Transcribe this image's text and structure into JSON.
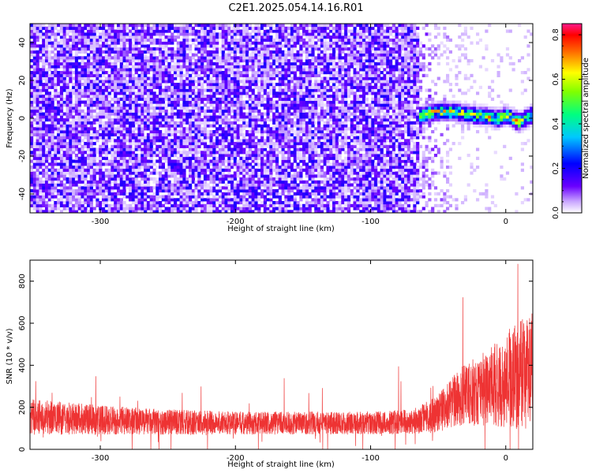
{
  "title": "C2E1.2025.054.14.16.R01",
  "chart_data": [
    {
      "type": "heatmap",
      "xlabel": "Height of straight line (km)",
      "ylabel": "Frequency (Hz)",
      "xlim": [
        -352,
        20
      ],
      "ylim": [
        -50,
        50
      ],
      "xticks": [
        -300,
        -200,
        -100,
        0
      ],
      "xtick_labels": [
        "-300",
        "-200",
        "-100",
        "0"
      ],
      "yticks": [
        -40,
        -20,
        0,
        20,
        40
      ],
      "ytick_labels": [
        "-40",
        "-20",
        "0",
        "20",
        "40"
      ],
      "colorbar": {
        "label": "Normalized spectral amplitude",
        "range": [
          0,
          0.85
        ],
        "ticks": [
          0,
          0.2,
          0.4,
          0.6,
          0.8
        ],
        "tick_labels": [
          "0.0",
          "0.2",
          "0.4",
          "0.6",
          "0.8"
        ],
        "colormap": [
          "#ffffff",
          "#6a00ff",
          "#0000ff",
          "#00ffff",
          "#00ff00",
          "#ffff00",
          "#ff0000",
          "#ff0080"
        ]
      },
      "noise_region": {
        "x": [
          -352,
          -65
        ],
        "y": [
          -50,
          50
        ],
        "typical_amplitude": 0.1
      },
      "signal_ridge": {
        "x": [
          -65,
          -55,
          -45,
          -35,
          -25,
          -15,
          -5,
          0,
          10,
          20
        ],
        "y": [
          1,
          3,
          4,
          3,
          2,
          1,
          0,
          2,
          -2,
          2
        ],
        "peak_amplitude": 0.75
      }
    },
    {
      "type": "line",
      "xlabel": "Height of straight line (km)",
      "ylabel": "SNR (10 * v/v)",
      "xlim": [
        -352,
        20
      ],
      "ylim": [
        0,
        900
      ],
      "xticks": [
        -300,
        -200,
        -100,
        0
      ],
      "xtick_labels": [
        "-300",
        "-200",
        "-100",
        "0"
      ],
      "yticks": [
        0,
        200,
        400,
        600,
        800
      ],
      "ytick_labels": [
        "0",
        "200",
        "400",
        "600",
        "800"
      ],
      "color": "#ee3333",
      "envelope": {
        "x": [
          -352,
          -300,
          -250,
          -200,
          -150,
          -100,
          -70,
          -50,
          -40,
          -30,
          -20,
          -10,
          0,
          10,
          20
        ],
        "mean": [
          155,
          140,
          130,
          125,
          125,
          125,
          130,
          170,
          220,
          260,
          280,
          300,
          330,
          350,
          370
        ],
        "spread": [
          85,
          70,
          60,
          55,
          55,
          55,
          60,
          90,
          120,
          150,
          170,
          190,
          230,
          260,
          280
        ]
      }
    }
  ]
}
